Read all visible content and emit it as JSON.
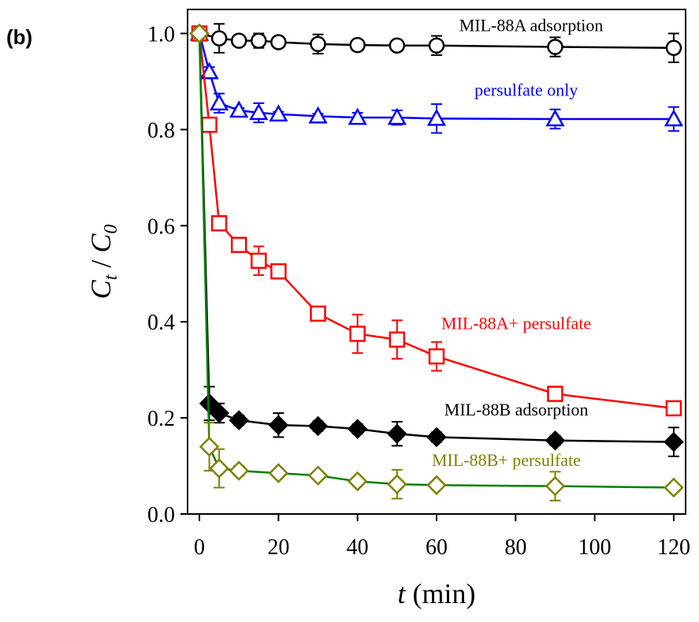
{
  "panel_label": "(b)",
  "chart_data": {
    "type": "line",
    "xlabel_var": "t",
    "xlabel_unit": " (min)",
    "ylabel_c": "C",
    "ylabel_t": "t",
    "ylabel_sep": " / ",
    "ylabel_0": "0",
    "xlim": [
      -3,
      123
    ],
    "ylim": [
      0.0,
      1.05
    ],
    "xticks": [
      0,
      20,
      40,
      60,
      80,
      100,
      120
    ],
    "xtick_labels": [
      "0",
      "20",
      "40",
      "60",
      "80",
      "100",
      "120"
    ],
    "yticks": [
      0.0,
      0.2,
      0.4,
      0.6,
      0.8,
      1.0
    ],
    "ytick_labels": [
      "0.0",
      "0.2",
      "0.4",
      "0.6",
      "0.8",
      "1.0"
    ],
    "grid": false,
    "series": [
      {
        "name": "MIL-88A adsorption",
        "color": "#000000",
        "marker": "circle",
        "filled": false,
        "label_pos": [
          0.69,
          1.005
        ],
        "x": [
          0,
          5,
          10,
          15,
          20,
          30,
          40,
          50,
          60,
          90,
          120
        ],
        "y": [
          1.0,
          0.99,
          0.985,
          0.985,
          0.982,
          0.978,
          0.976,
          0.975,
          0.975,
          0.972,
          0.97
        ],
        "err": [
          0.01,
          0.03,
          0.005,
          0.015,
          0.005,
          0.02,
          0.005,
          0.005,
          0.02,
          0.02,
          0.03
        ]
      },
      {
        "name": "persulfate only",
        "color": "#0000ff",
        "marker": "triangle",
        "filled": false,
        "label_pos": [
          0.68,
          0.87
        ],
        "x": [
          0,
          2.5,
          5,
          10,
          15,
          20,
          30,
          40,
          50,
          60,
          90,
          120
        ],
        "y": [
          1.0,
          0.92,
          0.855,
          0.84,
          0.835,
          0.832,
          0.828,
          0.825,
          0.825,
          0.823,
          0.822,
          0.822
        ],
        "err": [
          0.01,
          0.01,
          0.02,
          0.005,
          0.02,
          0.005,
          0.005,
          0.01,
          0.015,
          0.03,
          0.02,
          0.025
        ]
      },
      {
        "name": "MIL-88A+ persulfate",
        "color": "#ff0000",
        "marker": "square",
        "filled": false,
        "label_pos": [
          0.66,
          0.385
        ],
        "x": [
          0,
          2.5,
          5,
          10,
          15,
          20,
          30,
          40,
          50,
          60,
          90,
          120
        ],
        "y": [
          1.0,
          0.81,
          0.605,
          0.56,
          0.527,
          0.505,
          0.417,
          0.375,
          0.363,
          0.328,
          0.25,
          0.22
        ],
        "err": [
          0.01,
          0.01,
          0.01,
          0.01,
          0.03,
          0.01,
          0.01,
          0.04,
          0.04,
          0.03,
          0.01,
          0.01
        ]
      },
      {
        "name": "MIL-88B adsorption",
        "color": "#000000",
        "marker": "diamond",
        "filled": true,
        "label_pos": [
          0.66,
          0.205
        ],
        "x": [
          0,
          2.5,
          5,
          10,
          20,
          30,
          40,
          50,
          60,
          90,
          120
        ],
        "y": [
          1.0,
          0.23,
          0.21,
          0.195,
          0.185,
          0.183,
          0.177,
          0.167,
          0.16,
          0.153,
          0.15
        ],
        "err": [
          0.01,
          0.035,
          0.02,
          0.01,
          0.025,
          0.01,
          0.01,
          0.025,
          0.01,
          0.01,
          0.03
        ]
      },
      {
        "name": "MIL-88B+ persulfate",
        "color": "#808000",
        "line_color": "#008000",
        "marker": "diamond",
        "filled": false,
        "label_pos": [
          0.64,
          0.1
        ],
        "x": [
          0,
          2.5,
          5,
          10,
          20,
          30,
          40,
          50,
          60,
          90,
          120
        ],
        "y": [
          1.0,
          0.14,
          0.095,
          0.09,
          0.085,
          0.08,
          0.068,
          0.062,
          0.06,
          0.058,
          0.055
        ],
        "err": [
          0.01,
          0.05,
          0.04,
          0.01,
          0.005,
          0.005,
          0.005,
          0.03,
          0.005,
          0.03,
          0.005
        ]
      }
    ]
  }
}
